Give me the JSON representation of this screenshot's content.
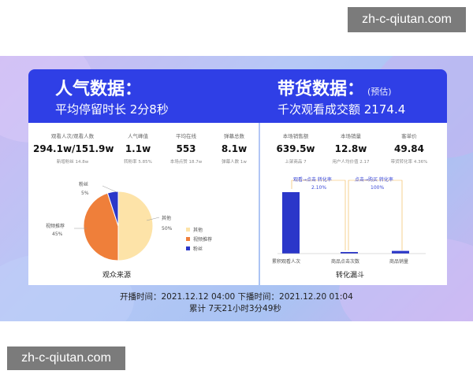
{
  "watermark": "zh-c-qiutan.com",
  "header": {
    "left_title": "人气数据：",
    "left_sub": "平均停留时长 2分8秒",
    "right_title": "带货数据：",
    "right_title_note": "(预估)",
    "right_sub": "千次观看成交额 2174.4"
  },
  "left_stats": [
    {
      "label": "观看人次/观看人数",
      "value": "294.1w/151.9w",
      "sub": "新增粉丝 14.8w"
    },
    {
      "label": "人气峰值",
      "value": "1.1w",
      "sub": "转粉率 5.85%"
    },
    {
      "label": "平均在线",
      "value": "553",
      "sub": "本场点赞 18.7w"
    },
    {
      "label": "弹幕总数",
      "value": "8.1w",
      "sub": "弹幕人数 1w"
    }
  ],
  "right_stats": [
    {
      "label": "本场销售额",
      "value": "639.5w",
      "sub": "上架商品 7"
    },
    {
      "label": "本场销量",
      "value": "12.8w",
      "sub": "用户人均价值 2.17"
    },
    {
      "label": "客单价",
      "value": "49.84",
      "sub": "带货转化率 4.36%"
    }
  ],
  "pie": {
    "caption": "观众来源",
    "slices": [
      {
        "name": "其他",
        "pct": "50%",
        "value": 50,
        "color": "#fde3a8"
      },
      {
        "name": "视频推荐",
        "pct": "45%",
        "value": 45,
        "color": "#ef7f3a"
      },
      {
        "name": "粉丝",
        "pct": "5%",
        "value": 5,
        "color": "#2b37c9"
      }
    ],
    "legend": [
      "其他",
      "视频推荐",
      "粉丝"
    ]
  },
  "funnel": {
    "caption": "转化漏斗",
    "categories": [
      "累积观看人次",
      "商品点击次数",
      "商品销量"
    ],
    "values": [
      294.1,
      6.2,
      12.8
    ],
    "steps": [
      {
        "label": "观看→点击 转化率",
        "pct": "2.10%"
      },
      {
        "label": "点击→购买 转化率",
        "pct": "100%"
      }
    ],
    "color": "#2b37c9"
  },
  "footer": {
    "line1": "开播时间：2021.12.12 04:00    下播时间：2021.12.20 01:04",
    "line2": "累计 7天21小时3分49秒"
  }
}
